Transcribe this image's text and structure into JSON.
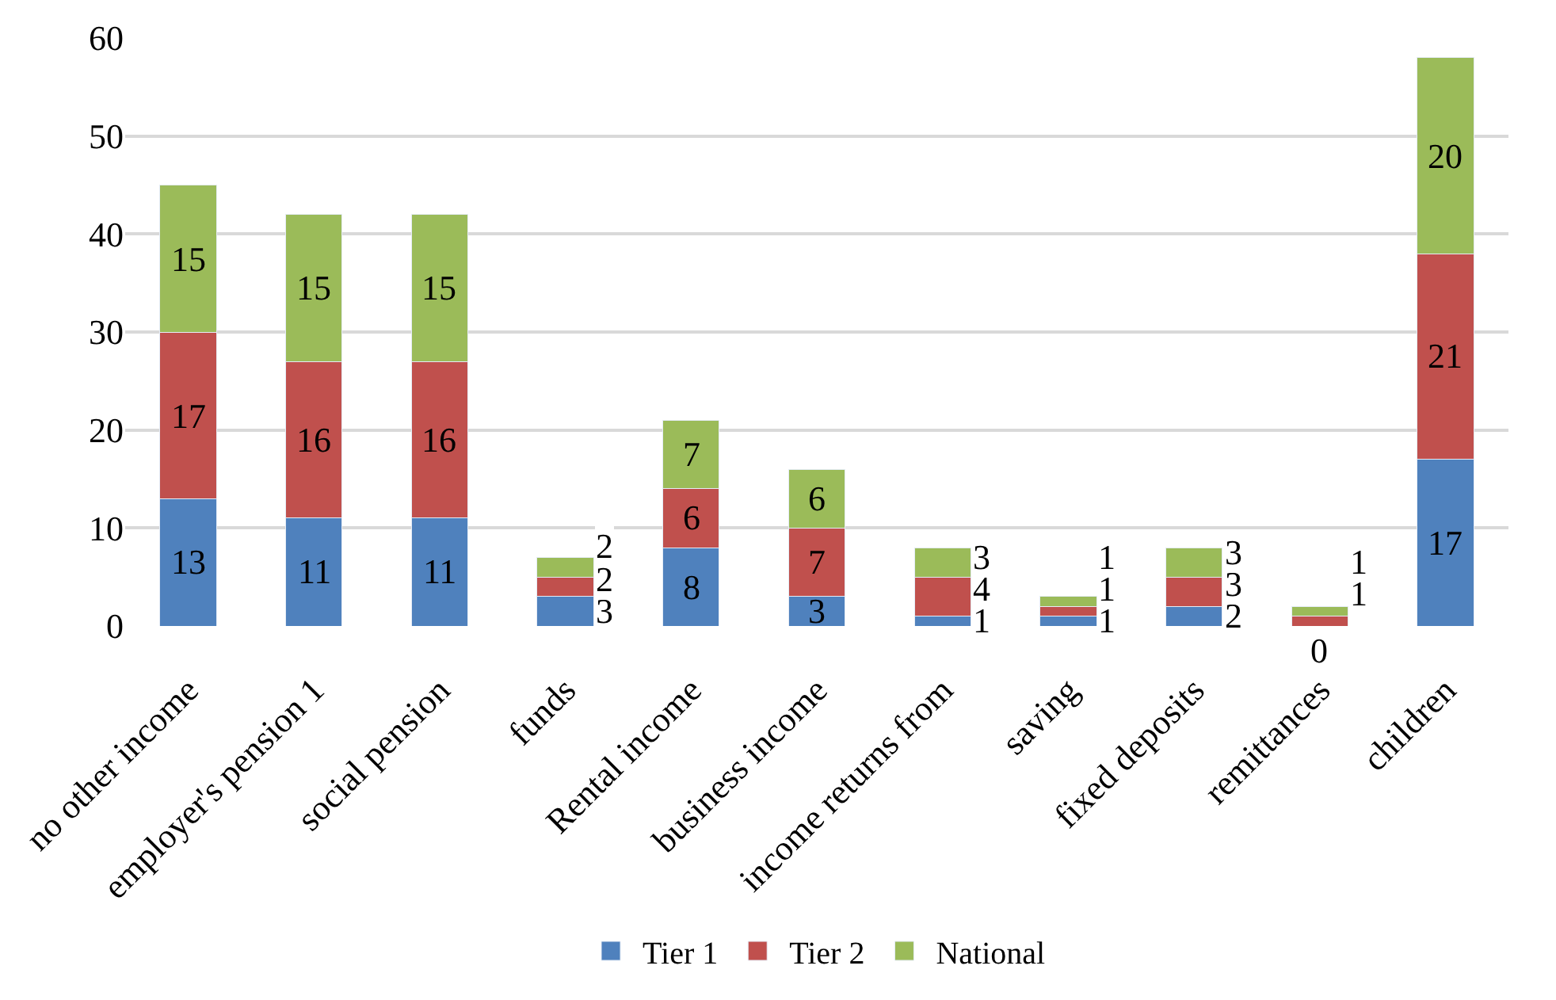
{
  "chart_data": {
    "type": "bar",
    "stacked": true,
    "data_labels": true,
    "grid": "y",
    "legend": "bottom",
    "categories": [
      "no other income",
      "employer's pension 1",
      "social pension",
      "funds",
      "Rental income",
      "business income",
      "income returns from",
      "saving",
      "fixed deposits",
      "remittances",
      "children"
    ],
    "series": [
      {
        "name": "Tier 1",
        "color": "#4f81bd",
        "values": [
          13,
          11,
          11,
          3,
          8,
          3,
          1,
          1,
          2,
          0,
          17
        ]
      },
      {
        "name": "Tier 2",
        "color": "#c0504d",
        "values": [
          17,
          16,
          16,
          2,
          6,
          7,
          4,
          1,
          3,
          1,
          21
        ]
      },
      {
        "name": "National",
        "color": "#9bbb59",
        "values": [
          15,
          15,
          15,
          2,
          7,
          6,
          3,
          1,
          3,
          1,
          20
        ]
      }
    ],
    "ylim": [
      0,
      60
    ],
    "yticks": [
      0,
      10,
      20,
      30,
      40,
      50,
      60
    ]
  }
}
